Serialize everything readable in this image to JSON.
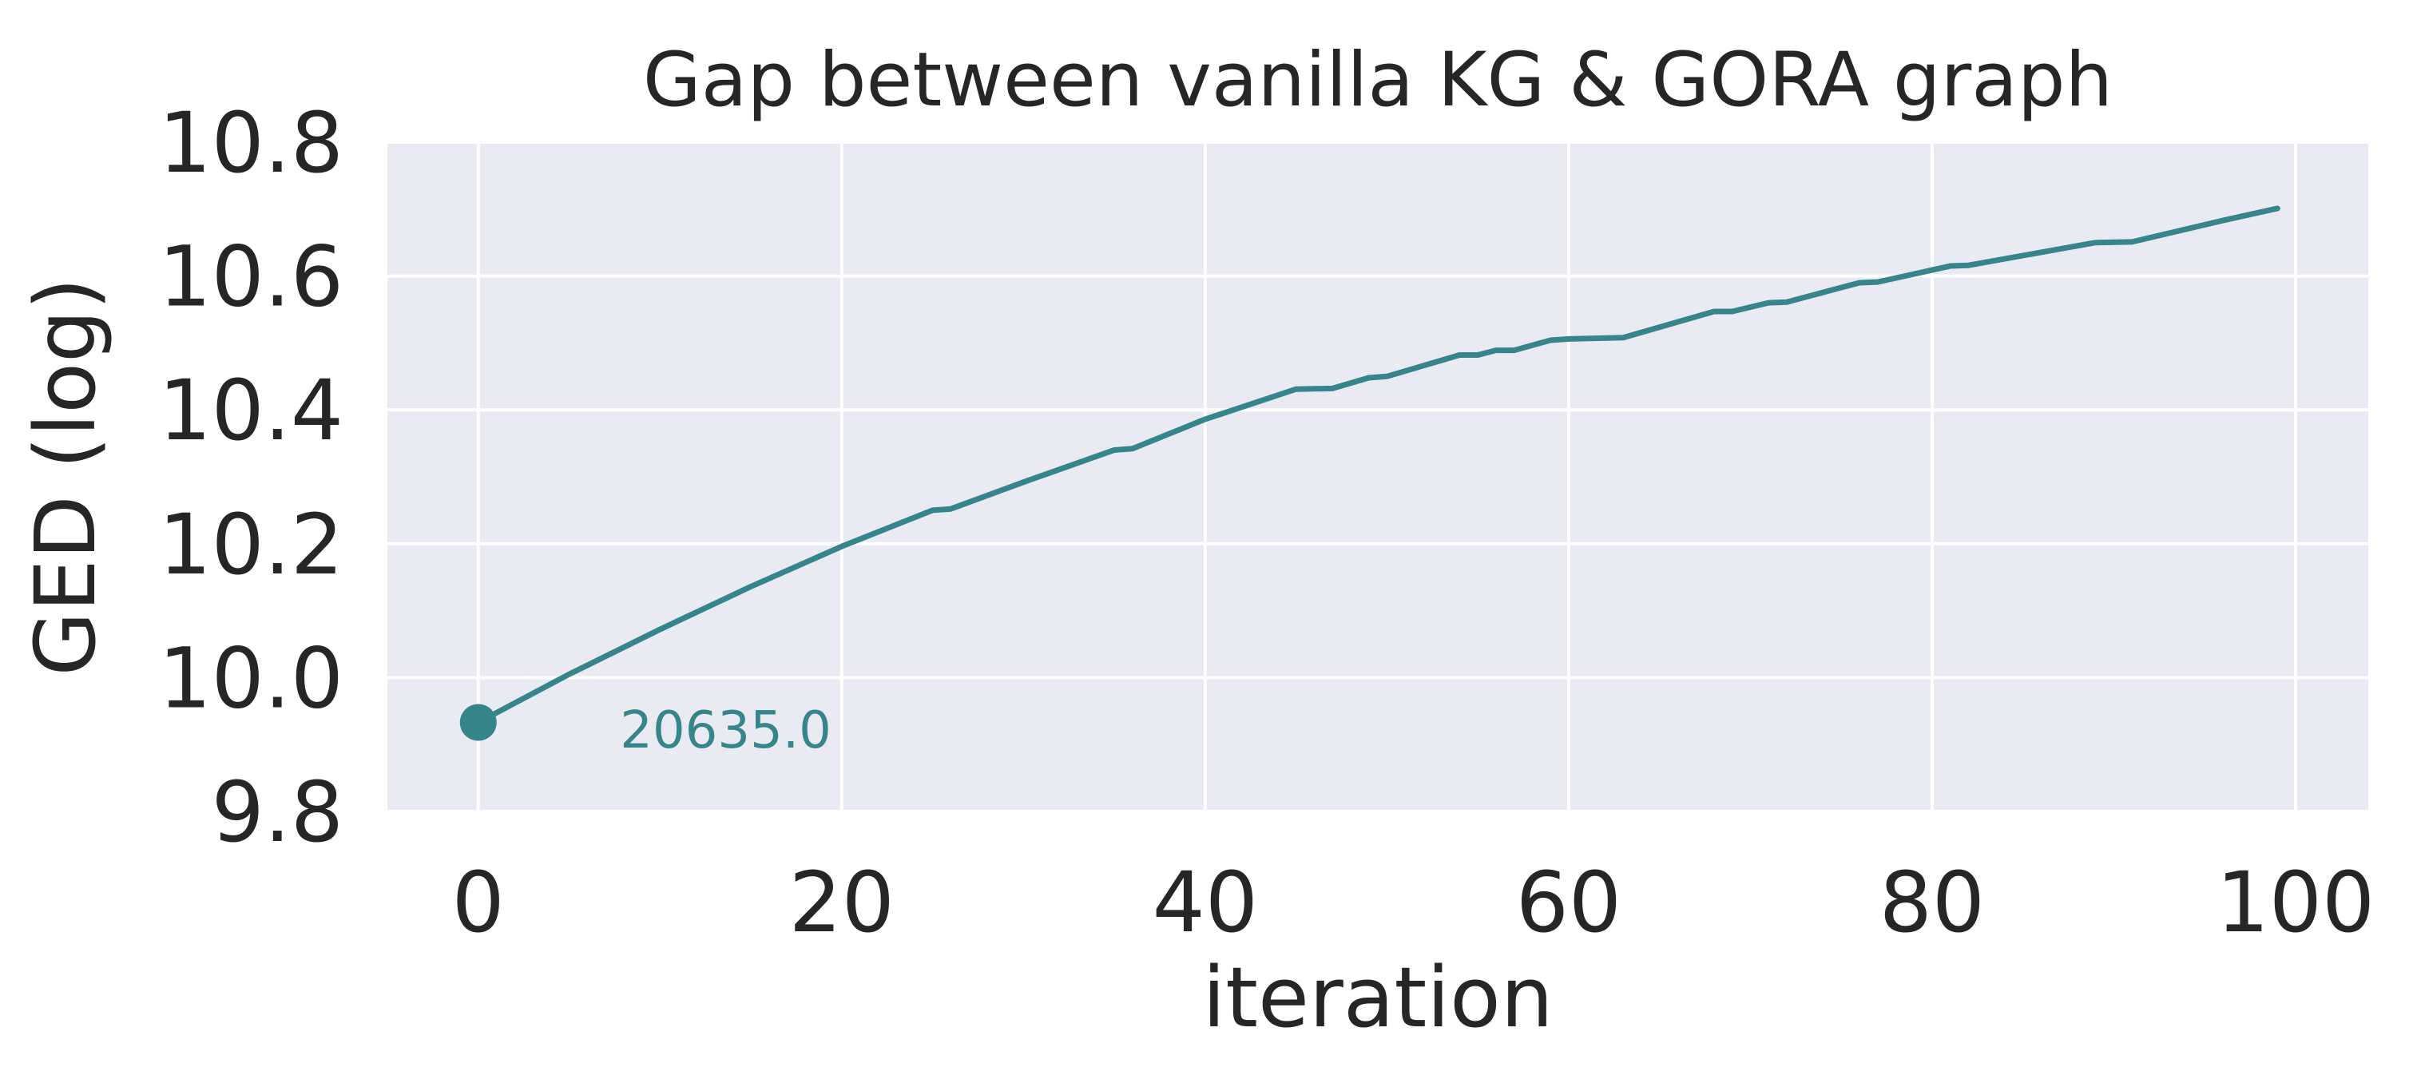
{
  "chart_data": {
    "type": "line",
    "title": "Gap between vanilla KG & GORA graph",
    "xlabel": "iteration",
    "ylabel": "GED (log)",
    "xlim": [
      -5,
      104
    ],
    "ylim": [
      9.8,
      10.8
    ],
    "x_ticks": [
      0,
      20,
      40,
      60,
      80,
      100
    ],
    "x_tick_labels": [
      "0",
      "20",
      "40",
      "60",
      "80",
      "100"
    ],
    "y_ticks": [
      9.8,
      10.0,
      10.2,
      10.4,
      10.6,
      10.8
    ],
    "y_tick_labels": [
      "9.8",
      "10.0",
      "10.2",
      "10.4",
      "10.6",
      "10.8"
    ],
    "grid": true,
    "background_color": "#EAEAF2",
    "grid_color": "#FFFFFF",
    "text_color": "#262626",
    "series": [
      {
        "color": "#35858B",
        "x": [
          0,
          5,
          10,
          15,
          20,
          25,
          26,
          30,
          35,
          36,
          40,
          45,
          47,
          49,
          50,
          54,
          55,
          56,
          57,
          59,
          60,
          63,
          68,
          69,
          71,
          72,
          76,
          77,
          81,
          82,
          89,
          91,
          96,
          99
        ],
        "y": [
          9.933,
          10.005,
          10.072,
          10.136,
          10.196,
          10.25,
          10.252,
          10.292,
          10.34,
          10.342,
          10.386,
          10.431,
          10.432,
          10.448,
          10.45,
          10.482,
          10.482,
          10.489,
          10.489,
          10.504,
          10.506,
          10.508,
          10.547,
          10.547,
          10.56,
          10.561,
          10.59,
          10.591,
          10.615,
          10.616,
          10.65,
          10.651,
          10.683,
          10.701
        ]
      }
    ],
    "marker": {
      "x": 0,
      "y": 9.933
    },
    "annotations": [
      {
        "text": "20635.0",
        "x": 7.8,
        "y": 9.922
      }
    ]
  }
}
